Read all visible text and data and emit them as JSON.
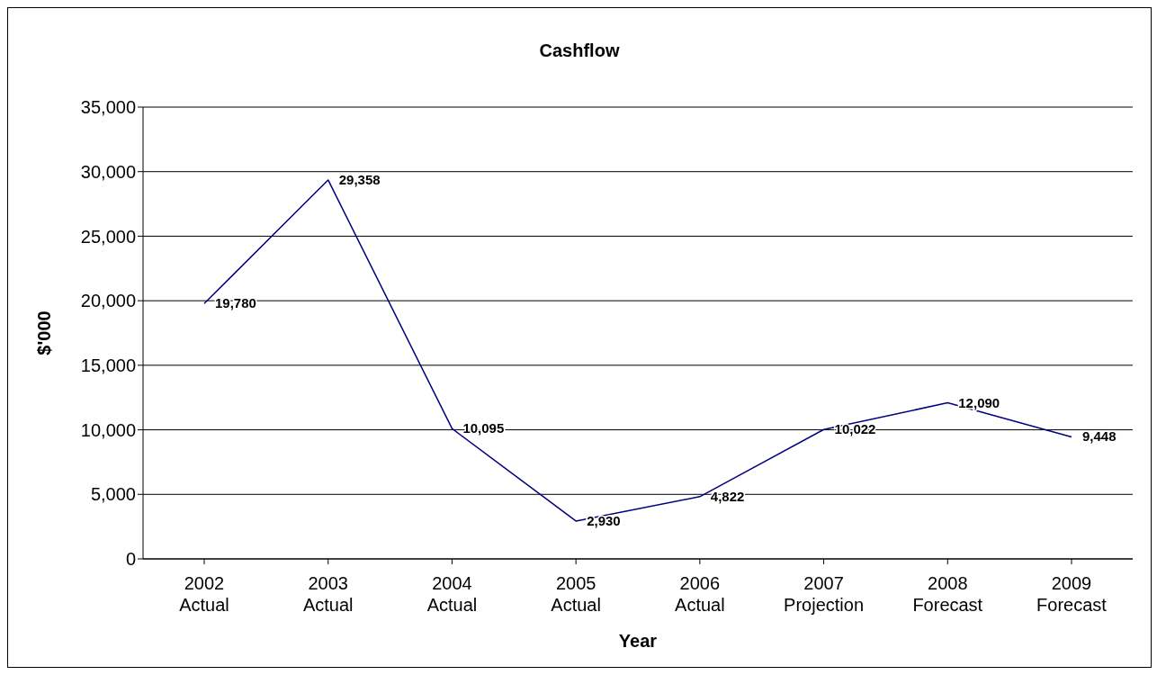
{
  "chart_data": {
    "type": "line",
    "title": "Cashflow",
    "xlabel": "Year",
    "ylabel": "$'000",
    "categories": [
      "2002\nActual",
      "2003\nActual",
      "2004\nActual",
      "2005\nActual",
      "2006\nActual",
      "2007\nProjection",
      "2008\nForecast",
      "2009\nForecast"
    ],
    "values": [
      19780,
      29358,
      10095,
      2930,
      4822,
      10022,
      12090,
      9448
    ],
    "value_labels": [
      "19,780",
      "29,358",
      "10,095",
      "2,930",
      "4,822",
      "10,022",
      "12,090",
      "9,448"
    ],
    "color": "#000080",
    "ylim": [
      0,
      35000
    ],
    "yticks": [
      0,
      {
        "value": 5000,
        "label": "5,000"
      },
      {
        "value": 10000,
        "label": "10,000"
      },
      {
        "value": 15000,
        "label": "15,000"
      },
      {
        "value": 20000,
        "label": "20,000"
      },
      {
        "value": 25000,
        "label": "25,000"
      },
      {
        "value": 30000,
        "label": "30,000"
      },
      {
        "value": 35000,
        "label": "35,000"
      }
    ],
    "grid": "y",
    "legend": false,
    "marker": "none",
    "line_style": "solid"
  }
}
